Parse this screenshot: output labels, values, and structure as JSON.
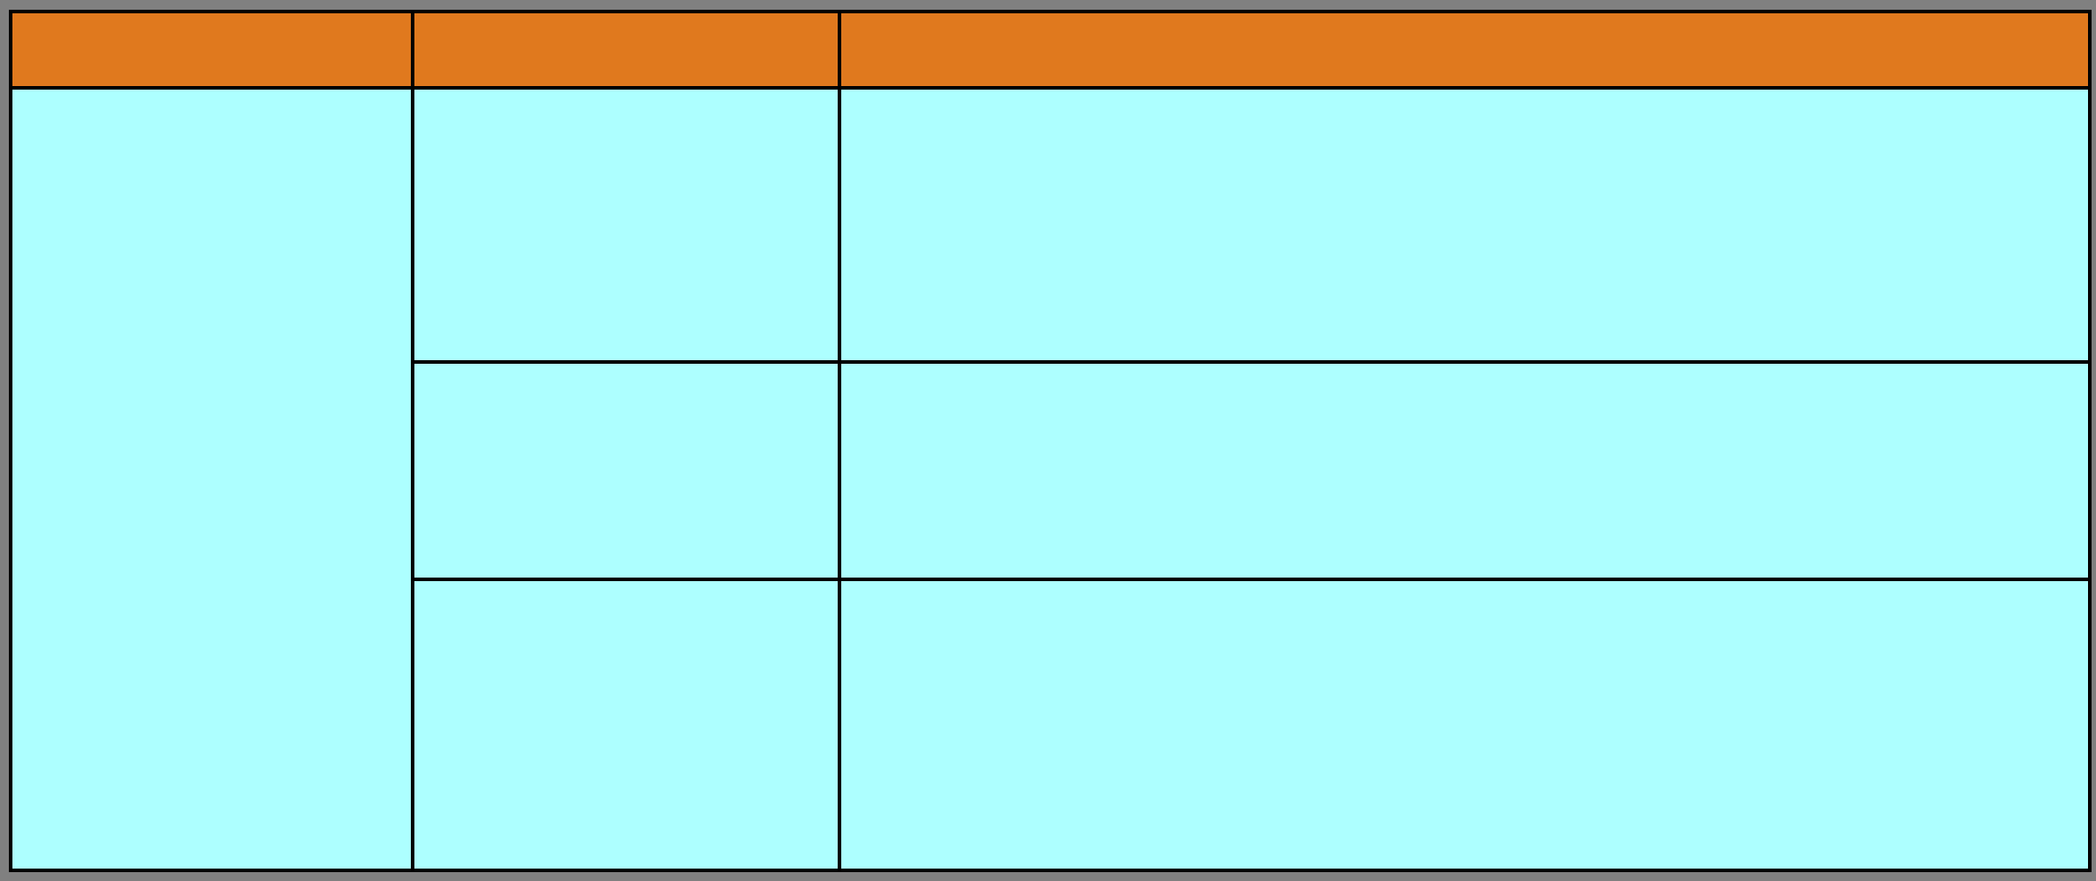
{
  "page": {
    "background_color": "#808080"
  },
  "table": {
    "border_color": "#000000",
    "header": {
      "background_color": "#e0791e",
      "cells": [
        "",
        "",
        ""
      ]
    },
    "body": {
      "background_color": "#adffff",
      "merged_left_cell": "",
      "rows": [
        {
          "cells": [
            "",
            ""
          ]
        },
        {
          "cells": [
            "",
            ""
          ]
        },
        {
          "cells": [
            "",
            ""
          ]
        }
      ]
    }
  }
}
